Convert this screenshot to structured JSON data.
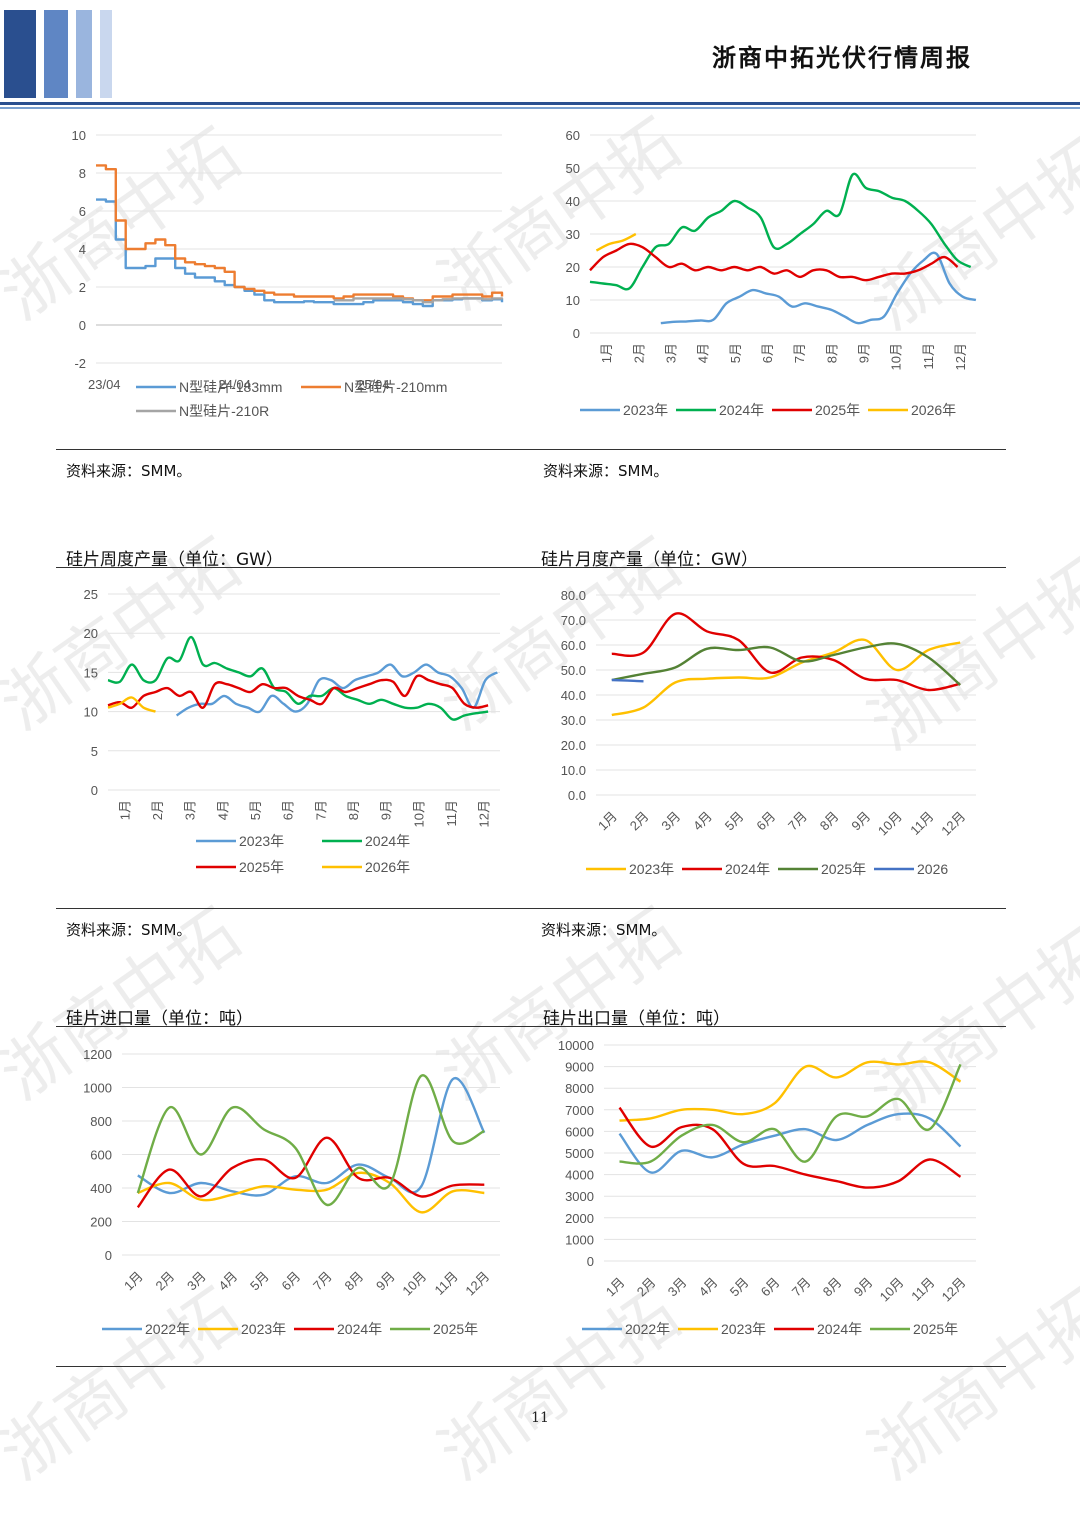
{
  "header": {
    "title": "浙商中拓光伏行情周报"
  },
  "footer": {
    "page_number": "11"
  },
  "watermark": {
    "text": "浙商中拓"
  },
  "colors": {
    "blue": "#5b9bd5",
    "orange": "#ed7d31",
    "gray": "#a5a5a5",
    "green": "#00b050",
    "red": "#e00000",
    "yellow": "#ffc000",
    "olive": "#548235",
    "navy": "#4472c4",
    "lime": "#70ad47"
  },
  "sections": {
    "c1": {
      "source": "资料来源：SMM。"
    },
    "c2": {
      "source": "资料来源：SMM。"
    },
    "c3": {
      "title": "硅片周度产量（单位：GW）",
      "source": "资料来源：SMM。"
    },
    "c4": {
      "title": "硅片月度产量（单位：GW）",
      "source": "资料来源：SMM。"
    },
    "c5": {
      "title": "硅片进口量（单位：吨）"
    },
    "c6": {
      "title": "硅片出口量（单位：吨）"
    }
  },
  "chart_data": [
    {
      "id": "c1",
      "type": "line",
      "title": "",
      "yticks": [
        "10",
        "8",
        "6",
        "4",
        "2",
        "0",
        "-2"
      ],
      "ylim": [
        -2,
        10
      ],
      "xticks": [
        "23/04",
        "24/04",
        "25/04"
      ],
      "legend_cols": 2,
      "series": [
        {
          "name": "N型硅片-183mm",
          "color": "#5b9bd5",
          "step": true,
          "values": [
            6.6,
            6.5,
            4.5,
            3.0,
            3.0,
            3.1,
            3.5,
            3.5,
            3.0,
            2.7,
            2.5,
            2.5,
            2.3,
            2.1,
            2.0,
            1.8,
            1.6,
            1.3,
            1.2,
            1.2,
            1.2,
            1.25,
            1.2,
            1.2,
            1.1,
            1.1,
            1.1,
            1.2,
            1.3,
            1.3,
            1.3,
            1.2,
            1.1,
            1.0,
            1.3,
            1.3,
            1.35,
            1.4,
            1.4,
            1.3,
            1.35,
            1.2
          ]
        },
        {
          "name": "N型硅片-210mm",
          "color": "#ed7d31",
          "step": true,
          "values": [
            8.4,
            8.2,
            5.5,
            4.0,
            4.0,
            4.3,
            4.5,
            4.2,
            3.5,
            3.3,
            3.2,
            3.1,
            3.0,
            2.8,
            2.0,
            1.9,
            1.8,
            1.7,
            1.6,
            1.6,
            1.5,
            1.5,
            1.5,
            1.5,
            1.4,
            1.5,
            1.6,
            1.6,
            1.6,
            1.6,
            1.5,
            1.4,
            1.3,
            1.3,
            1.5,
            1.5,
            1.6,
            1.6,
            1.6,
            1.5,
            1.7,
            1.5
          ]
        },
        {
          "name": "N型硅片-210R",
          "color": "#a5a5a5",
          "step": true,
          "start": 24,
          "values": [
            1.3,
            1.3,
            1.4,
            1.4,
            1.4,
            1.4,
            1.4,
            1.35,
            1.3,
            1.2,
            1.3,
            1.35,
            1.4,
            1.4,
            1.4,
            1.35,
            1.4,
            1.35
          ]
        }
      ]
    },
    {
      "id": "c2",
      "type": "line",
      "title": "",
      "yticks": [
        "60",
        "50",
        "40",
        "30",
        "20",
        "10",
        "0"
      ],
      "ylim": [
        0,
        60
      ],
      "xticks": [
        "1月",
        "2月",
        "3月",
        "4月",
        "5月",
        "6月",
        "7月",
        "8月",
        "9月",
        "10月",
        "11月",
        "12月"
      ],
      "legend_cols": 4,
      "series": [
        {
          "name": "2023年",
          "color": "#5b9bd5",
          "start": 2.2,
          "values": [
            3,
            3.4,
            3.5,
            3.8,
            4,
            9,
            11,
            13,
            12,
            11,
            8,
            9,
            8,
            7,
            5,
            3,
            4,
            5,
            12,
            18,
            22,
            24,
            15,
            11,
            10,
            12,
            14,
            15
          ]
        },
        {
          "name": "2024年",
          "color": "#00b050",
          "start": 0,
          "values": [
            15.5,
            15,
            14.5,
            13.5,
            20,
            26,
            27,
            32,
            31,
            35,
            37,
            40,
            38,
            35,
            26,
            27,
            30,
            33,
            37,
            36,
            48,
            44,
            43,
            41,
            40,
            37,
            33,
            27,
            22,
            20
          ]
        },
        {
          "name": "2025年",
          "color": "#e00000",
          "start": 0,
          "values": [
            19,
            23,
            25,
            27,
            26,
            23,
            20,
            21,
            19,
            20,
            19,
            20,
            19,
            20,
            18,
            19,
            17,
            19,
            19,
            17,
            17,
            16,
            17,
            18,
            18,
            19,
            21,
            23,
            20
          ]
        },
        {
          "name": "2026年",
          "color": "#ffc000",
          "start": 0.2,
          "values": [
            25,
            27,
            28,
            30
          ]
        }
      ]
    },
    {
      "id": "c3",
      "type": "line",
      "title": "硅片周度产量（单位：GW）",
      "yticks": [
        "25",
        "20",
        "15",
        "10",
        "5",
        "0"
      ],
      "ylim": [
        0,
        25
      ],
      "xticks": [
        "1月",
        "2月",
        "3月",
        "4月",
        "5月",
        "6月",
        "7月",
        "8月",
        "9月",
        "10月",
        "11月",
        "12月"
      ],
      "legend_cols": 2,
      "series": [
        {
          "name": "2023年",
          "color": "#5b9bd5",
          "start": 2.1,
          "values": [
            9.5,
            10.5,
            11,
            11,
            12,
            11,
            10.5,
            10,
            12,
            11,
            10,
            11,
            14,
            14,
            13,
            14,
            14.5,
            15,
            16,
            14.5,
            15,
            16,
            15,
            14.5,
            13,
            10.5,
            14,
            15,
            12,
            15.5,
            16,
            13
          ]
        },
        {
          "name": "2024年",
          "color": "#00b050",
          "start": 0,
          "values": [
            14,
            13.8,
            16,
            14,
            14,
            16.8,
            16.5,
            19.5,
            16,
            16.2,
            15.5,
            15,
            14.5,
            15.5,
            13,
            12.5,
            11,
            12,
            12,
            13,
            12,
            11.5,
            11,
            11.5,
            11,
            10.5,
            10.5,
            11,
            10.5,
            9,
            9.5,
            9.8,
            10
          ]
        },
        {
          "name": "2025年",
          "color": "#e00000",
          "start": 0,
          "values": [
            10.8,
            11.2,
            10.5,
            12,
            12.5,
            13,
            12,
            12.5,
            10.5,
            13.5,
            13.5,
            13,
            12.5,
            13.5,
            13,
            13,
            12,
            11.5,
            11,
            13,
            12.5,
            13,
            13.5,
            14,
            13.8,
            12,
            14.5,
            14,
            13.5,
            13,
            11,
            10.5,
            10.8
          ]
        },
        {
          "name": "2026年",
          "color": "#ffc000",
          "start": 0,
          "values": [
            10.5,
            11,
            11.8,
            10.5,
            10
          ]
        }
      ]
    },
    {
      "id": "c4",
      "type": "line",
      "title": "硅片月度产量（单位：GW）",
      "yticks": [
        "80.0",
        "70.0",
        "60.0",
        "50.0",
        "40.0",
        "30.0",
        "20.0",
        "10.0",
        "0.0"
      ],
      "ylim": [
        0,
        80
      ],
      "xticks": [
        "1月",
        "2月",
        "3月",
        "4月",
        "5月",
        "6月",
        "7月",
        "8月",
        "9月",
        "10月",
        "11月",
        "12月"
      ],
      "legend_cols": 4,
      "series": [
        {
          "name": "2023年",
          "color": "#ffc000",
          "values": [
            32,
            35,
            45,
            46.5,
            47,
            47,
            53,
            57,
            62,
            50,
            58,
            61
          ]
        },
        {
          "name": "2024年",
          "color": "#e00000",
          "values": [
            56.5,
            57,
            72.5,
            65.5,
            62,
            49,
            55,
            54,
            46.5,
            46,
            42,
            44.5
          ]
        },
        {
          "name": "2025年",
          "color": "#548235",
          "values": [
            46,
            48.5,
            51,
            58.5,
            58,
            59,
            53.5,
            56,
            59,
            60.5,
            55,
            44
          ]
        },
        {
          "name": "2026",
          "color": "#4472c4",
          "values": [
            46,
            45.5
          ]
        }
      ]
    },
    {
      "id": "c5",
      "type": "line",
      "title": "硅片进口量（单位：吨）",
      "yticks": [
        "1200",
        "1000",
        "800",
        "600",
        "400",
        "200",
        "0"
      ],
      "ylim": [
        0,
        1200
      ],
      "xticks": [
        "1月",
        "2月",
        "3月",
        "4月",
        "5月",
        "6月",
        "7月",
        "8月",
        "9月",
        "10月",
        "11月",
        "12月"
      ],
      "legend_cols": 4,
      "series": [
        {
          "name": "2022年",
          "color": "#5b9bd5",
          "values": [
            475,
            370,
            430,
            380,
            360,
            470,
            430,
            540,
            460,
            410,
            1050,
            730
          ]
        },
        {
          "name": "2023年",
          "color": "#ffc000",
          "values": [
            370,
            430,
            330,
            360,
            410,
            390,
            390,
            490,
            430,
            255,
            380,
            370
          ]
        },
        {
          "name": "2024年",
          "color": "#e00000",
          "values": [
            285,
            510,
            350,
            520,
            570,
            460,
            700,
            460,
            460,
            350,
            415,
            420
          ]
        },
        {
          "name": "2025年",
          "color": "#70ad47",
          "values": [
            370,
            880,
            600,
            880,
            750,
            640,
            300,
            520,
            420,
            1070,
            680,
            740
          ]
        }
      ]
    },
    {
      "id": "c6",
      "type": "line",
      "title": "硅片出口量（单位：吨）",
      "yticks": [
        "10000",
        "9000",
        "8000",
        "7000",
        "6000",
        "5000",
        "4000",
        "3000",
        "2000",
        "1000",
        "0"
      ],
      "ylim": [
        0,
        10000
      ],
      "xticks": [
        "1月",
        "2月",
        "3月",
        "4月",
        "5月",
        "6月",
        "7月",
        "8月",
        "9月",
        "10月",
        "11月",
        "12月"
      ],
      "legend_cols": 4,
      "series": [
        {
          "name": "2022年",
          "color": "#5b9bd5",
          "values": [
            5900,
            4100,
            5100,
            4800,
            5400,
            5800,
            6100,
            5600,
            6300,
            6800,
            6600,
            5300
          ]
        },
        {
          "name": "2023年",
          "color": "#ffc000",
          "values": [
            6500,
            6600,
            7000,
            7000,
            6800,
            7300,
            9000,
            8500,
            9200,
            9100,
            9200,
            8300
          ]
        },
        {
          "name": "2024年",
          "color": "#e00000",
          "values": [
            7100,
            5300,
            6200,
            6100,
            4500,
            4400,
            4000,
            3700,
            3400,
            3700,
            4700,
            3900
          ]
        },
        {
          "name": "2025年",
          "color": "#70ad47",
          "values": [
            4600,
            4600,
            5800,
            6300,
            5500,
            6100,
            4600,
            6700,
            6700,
            7500,
            6100,
            9100
          ]
        }
      ]
    }
  ]
}
